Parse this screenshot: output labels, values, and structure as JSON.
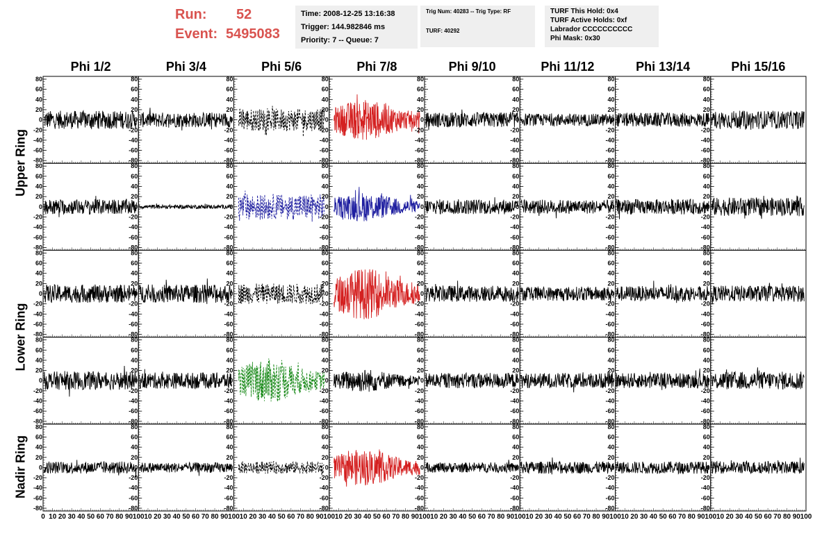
{
  "header": {
    "run_label": "Run:",
    "run_value": "52",
    "event_label": "Event:",
    "event_value": "5495083"
  },
  "info_box_1": {
    "time": "Time: 2008-12-25 13:16:38",
    "trigger": "Trigger: 144.982846 ms",
    "priority": "Priority: 7 -- Queue: 7"
  },
  "info_box_2": {
    "trig": "Trig Num: 40283 -- Trig Type: RF",
    "turf": "TURF: 40292"
  },
  "info_box_3": {
    "this_hold": "TURF This Hold: 0x4",
    "active_holds": "TURF Active Holds: 0xf",
    "labrador": "Labrador CCCCCCCCCC",
    "phi_mask": "Phi Mask: 0x30"
  },
  "colors": {
    "header_red": "#d9534f",
    "trace_black": "#000000",
    "trace_red": "#d42020",
    "trace_blue": "#1f1fa0",
    "trace_green": "#1a8a1a"
  },
  "chart_data": {
    "type": "line",
    "columns": [
      "Phi 1/2",
      "Phi 3/4",
      "Phi 5/6",
      "Phi 7/8",
      "Phi 9/10",
      "Phi 11/12",
      "Phi 13/14",
      "Phi 15/16"
    ],
    "rings": [
      "Upper Ring",
      "Lower Ring",
      "Nadir Ring"
    ],
    "xlim": [
      0,
      100
    ],
    "x_ticks": [
      "0",
      "10",
      "20",
      "30",
      "40",
      "50",
      "60",
      "70",
      "80",
      "90",
      "100"
    ],
    "ylim": [
      -80,
      80
    ],
    "y_ticks": [
      "80",
      "60",
      "40",
      "20",
      "0",
      "-20",
      "-40",
      "-60",
      "-80"
    ],
    "approx_trace_amplitudes": [
      [
        18,
        15,
        22,
        28,
        15,
        12,
        14,
        18
      ],
      [
        15,
        4,
        25,
        20,
        15,
        14,
        15,
        18
      ],
      [
        18,
        18,
        20,
        35,
        16,
        14,
        15,
        16
      ],
      [
        18,
        16,
        30,
        16,
        15,
        15,
        15,
        18
      ],
      [
        12,
        10,
        12,
        25,
        10,
        12,
        12,
        12
      ]
    ],
    "trace_colors": [
      [
        "black",
        "black",
        "black",
        "red",
        "black",
        "black",
        "black",
        "black"
      ],
      [
        "black",
        "black",
        "blue",
        "blue",
        "black",
        "black",
        "black",
        "black"
      ],
      [
        "black",
        "black",
        "black",
        "red",
        "black",
        "black",
        "black",
        "black"
      ],
      [
        "black",
        "black",
        "green",
        "black",
        "black",
        "black",
        "black",
        "black"
      ],
      [
        "black",
        "black",
        "black",
        "red",
        "black",
        "black",
        "black",
        "black"
      ]
    ]
  }
}
